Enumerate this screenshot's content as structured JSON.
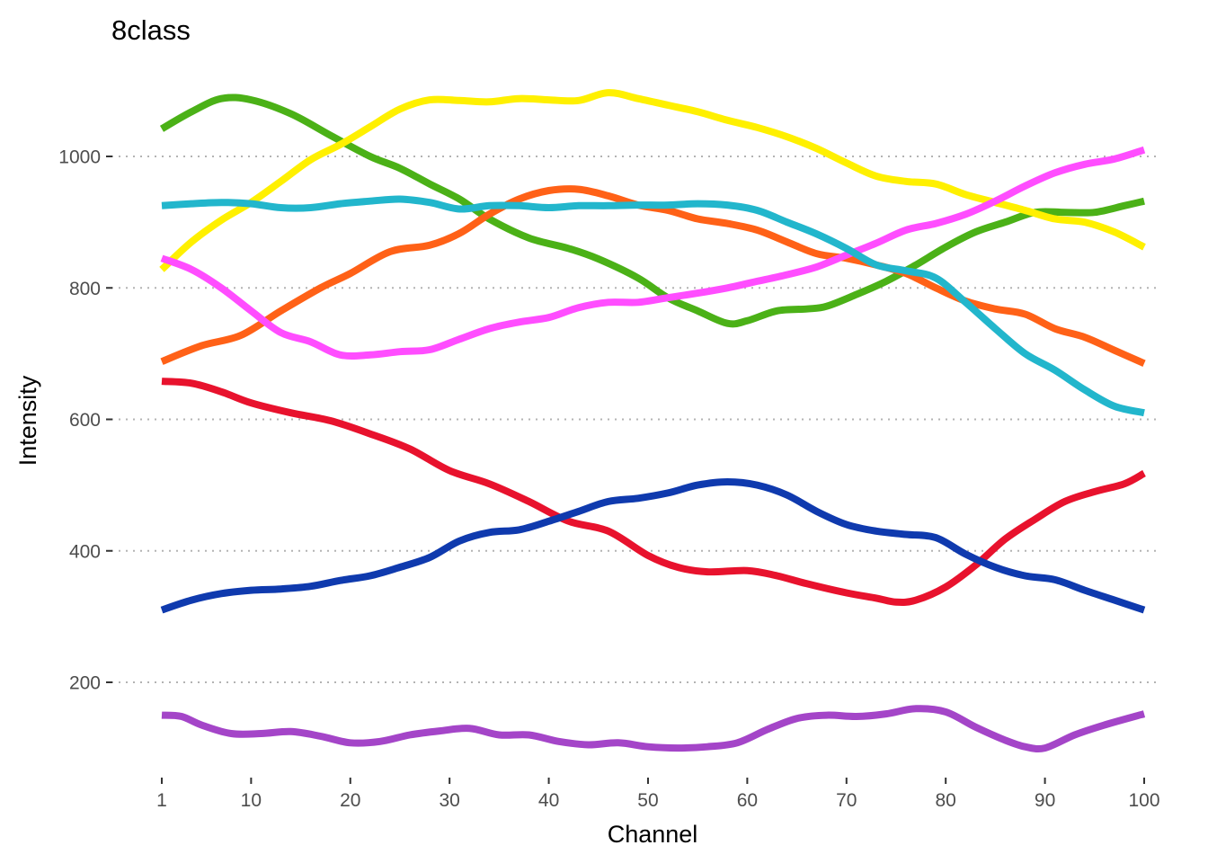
{
  "chart_data": {
    "type": "line",
    "title": "8class",
    "xlabel": "Channel",
    "ylabel": "Intensity",
    "xlim": [
      1,
      100
    ],
    "ylim": [
      80,
      1130
    ],
    "x_ticks": [
      1,
      10,
      20,
      30,
      40,
      50,
      60,
      70,
      80,
      90,
      100
    ],
    "y_ticks": [
      200,
      400,
      600,
      800,
      1000
    ],
    "grid": "horizontal-dotted",
    "legend": "none",
    "series": [
      {
        "color": "#4BB117",
        "x": [
          1,
          4,
          7,
          10,
          14,
          18,
          22,
          25,
          28,
          31,
          34,
          38,
          42,
          45,
          49,
          52,
          55,
          58,
          60,
          63,
          66,
          68,
          71,
          74,
          77,
          80,
          83,
          86,
          89,
          92,
          95,
          98,
          100
        ],
        "y": [
          1042,
          1068,
          1088,
          1086,
          1065,
          1032,
          1000,
          982,
          958,
          935,
          905,
          876,
          860,
          844,
          815,
          785,
          765,
          746,
          750,
          765,
          768,
          772,
          790,
          810,
          835,
          862,
          885,
          900,
          915,
          915,
          915,
          925,
          932
        ]
      },
      {
        "color": "#FFF000",
        "x": [
          1,
          4,
          7,
          10,
          13,
          16,
          19,
          22,
          25,
          28,
          31,
          34,
          37,
          40,
          43,
          46,
          49,
          52,
          55,
          58,
          61,
          64,
          67,
          70,
          73,
          76,
          79,
          82,
          85,
          88,
          91,
          94,
          97,
          100
        ],
        "y": [
          828,
          870,
          903,
          930,
          962,
          995,
          1018,
          1045,
          1072,
          1086,
          1085,
          1083,
          1088,
          1086,
          1085,
          1097,
          1088,
          1078,
          1068,
          1055,
          1044,
          1030,
          1012,
          990,
          970,
          962,
          958,
          942,
          930,
          918,
          905,
          900,
          885,
          862
        ]
      },
      {
        "color": "#FF6117",
        "x": [
          1,
          5,
          9,
          13,
          17,
          20,
          24,
          28,
          31,
          34,
          37,
          40,
          43,
          46,
          49,
          52,
          55,
          58,
          61,
          64,
          67,
          70,
          73,
          76,
          79,
          82,
          85,
          88,
          91,
          94,
          97,
          100
        ],
        "y": [
          688,
          712,
          728,
          765,
          800,
          822,
          855,
          865,
          883,
          912,
          935,
          948,
          950,
          940,
          926,
          918,
          905,
          898,
          888,
          870,
          852,
          845,
          835,
          822,
          800,
          780,
          768,
          760,
          738,
          725,
          705,
          685
        ]
      },
      {
        "color": "#FF4DFF",
        "x": [
          1,
          4,
          7,
          10,
          13,
          16,
          19,
          22,
          25,
          28,
          31,
          34,
          37,
          40,
          43,
          46,
          49,
          52,
          55,
          58,
          61,
          64,
          67,
          70,
          73,
          76,
          79,
          82,
          85,
          88,
          91,
          94,
          97,
          100
        ],
        "y": [
          845,
          828,
          800,
          765,
          732,
          718,
          698,
          698,
          703,
          706,
          722,
          738,
          748,
          755,
          770,
          778,
          778,
          785,
          792,
          800,
          810,
          820,
          832,
          850,
          868,
          888,
          898,
          912,
          932,
          955,
          975,
          988,
          996,
          1010
        ]
      },
      {
        "color": "#22B6CC",
        "x": [
          1,
          4,
          7,
          10,
          13,
          16,
          19,
          22,
          25,
          28,
          31,
          34,
          37,
          40,
          43,
          46,
          49,
          52,
          55,
          58,
          61,
          64,
          67,
          70,
          73,
          76,
          79,
          82,
          85,
          88,
          91,
          94,
          97,
          100
        ],
        "y": [
          925,
          928,
          930,
          928,
          922,
          922,
          928,
          932,
          935,
          930,
          920,
          925,
          925,
          922,
          925,
          925,
          926,
          926,
          928,
          926,
          918,
          900,
          882,
          860,
          835,
          826,
          815,
          778,
          738,
          700,
          675,
          645,
          620,
          610
        ]
      },
      {
        "color": "#E8122D",
        "x": [
          1,
          4,
          7,
          10,
          14,
          18,
          22,
          26,
          30,
          34,
          38,
          42,
          46,
          50,
          53,
          56,
          60,
          63,
          66,
          70,
          73,
          75,
          77,
          80,
          83,
          86,
          89,
          92,
          95,
          98,
          100
        ],
        "y": [
          658,
          655,
          642,
          625,
          610,
          598,
          578,
          555,
          522,
          502,
          475,
          445,
          430,
          393,
          375,
          368,
          370,
          362,
          350,
          336,
          328,
          322,
          325,
          345,
          378,
          418,
          448,
          475,
          490,
          502,
          518
        ]
      },
      {
        "color": "#0F3AAE",
        "x": [
          1,
          4,
          7,
          10,
          13,
          16,
          19,
          22,
          25,
          28,
          31,
          34,
          37,
          40,
          43,
          46,
          49,
          52,
          55,
          58,
          61,
          64,
          67,
          70,
          73,
          76,
          79,
          82,
          85,
          88,
          91,
          94,
          97,
          100
        ],
        "y": [
          310,
          325,
          335,
          340,
          342,
          346,
          355,
          362,
          375,
          390,
          415,
          428,
          432,
          445,
          460,
          475,
          480,
          488,
          500,
          505,
          500,
          485,
          460,
          440,
          430,
          425,
          420,
          395,
          375,
          362,
          356,
          340,
          325,
          310
        ]
      },
      {
        "color": "#A445C8",
        "x": [
          1,
          3,
          5,
          8,
          11,
          14,
          17,
          20,
          23,
          26,
          29,
          32,
          35,
          38,
          41,
          44,
          47,
          50,
          53,
          56,
          59,
          62,
          65,
          68,
          71,
          74,
          77,
          80,
          83,
          86,
          88,
          90,
          93,
          96,
          100
        ],
        "y": [
          150,
          148,
          135,
          122,
          122,
          125,
          118,
          108,
          110,
          120,
          126,
          130,
          120,
          120,
          110,
          105,
          108,
          102,
          100,
          102,
          108,
          128,
          145,
          150,
          148,
          152,
          160,
          155,
          132,
          112,
          102,
          100,
          120,
          135,
          152
        ]
      }
    ]
  }
}
